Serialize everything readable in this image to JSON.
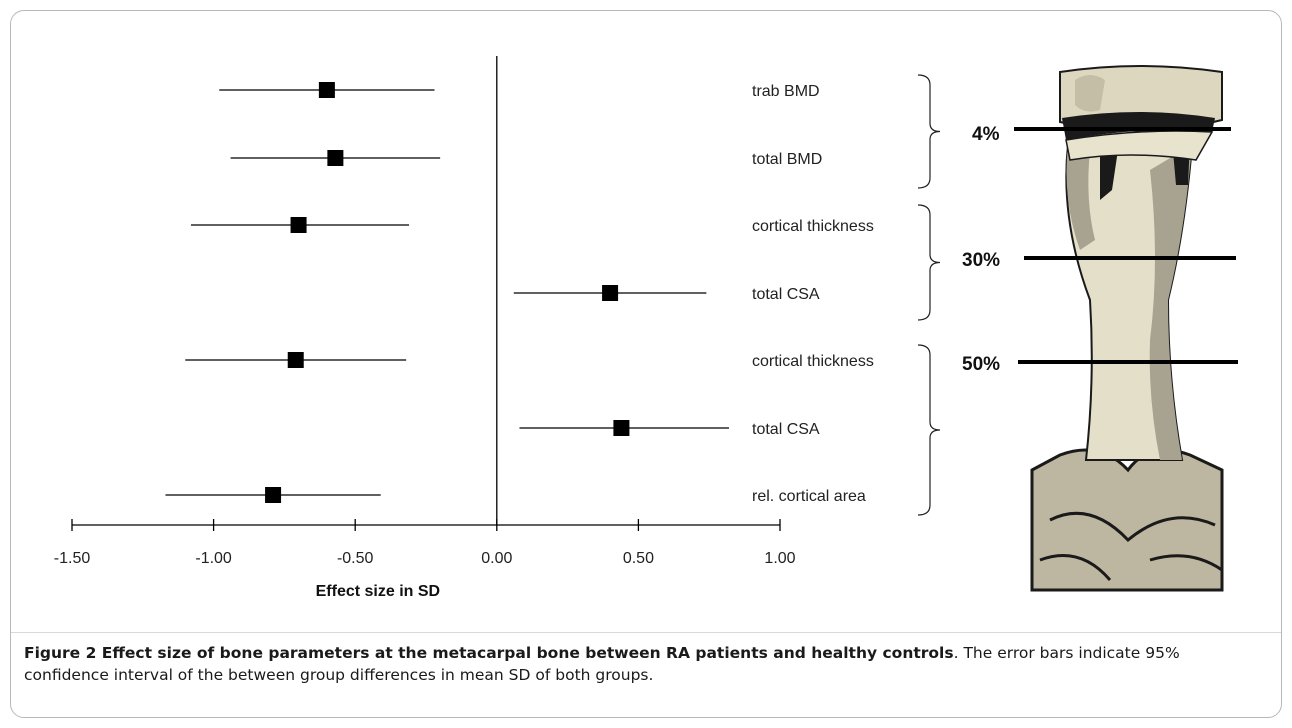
{
  "chart_data": {
    "type": "scatter",
    "subtype": "forest-plot",
    "xlabel": "Effect size in SD",
    "ylabel": "",
    "xlim": [
      -1.5,
      1.0
    ],
    "xticks": [
      "-1.50",
      "-1.00",
      "-0.50",
      "0.00",
      "0.50",
      "1.00"
    ],
    "xtick_values": [
      -1.5,
      -1.0,
      -0.5,
      0.0,
      0.5,
      1.0
    ],
    "reference_line": 0.0,
    "grid": false,
    "rows": [
      {
        "label": "trab BMD",
        "estimate": -0.6,
        "ci_low": -0.98,
        "ci_high": -0.22
      },
      {
        "label": "total BMD",
        "estimate": -0.57,
        "ci_low": -0.94,
        "ci_high": -0.2
      },
      {
        "label": "cortical thickness",
        "estimate": -0.7,
        "ci_low": -1.08,
        "ci_high": -0.31
      },
      {
        "label": "total CSA",
        "estimate": 0.4,
        "ci_low": 0.06,
        "ci_high": 0.74
      },
      {
        "label": "cortical thickness",
        "estimate": -0.71,
        "ci_low": -1.1,
        "ci_high": -0.32
      },
      {
        "label": "total CSA",
        "estimate": 0.44,
        "ci_low": 0.08,
        "ci_high": 0.82
      },
      {
        "label": "rel. cortical area",
        "estimate": -0.79,
        "ci_low": -1.17,
        "ci_high": -0.41
      }
    ],
    "groups": [
      {
        "label": "4%",
        "rows": [
          0,
          1
        ]
      },
      {
        "label": "30%",
        "rows": [
          2,
          3
        ]
      },
      {
        "label": "50%",
        "rows": [
          4,
          5,
          6
        ]
      }
    ]
  },
  "caption": {
    "bold": "Figure 2 Effect size of bone parameters at the metacarpal bone between RA patients and healthy controls",
    "text": ". The error bars indicate 95% confidence interval of the between group differences in mean SD of both groups."
  },
  "illustration": {
    "name": "metacarpal-bone-illustration"
  }
}
